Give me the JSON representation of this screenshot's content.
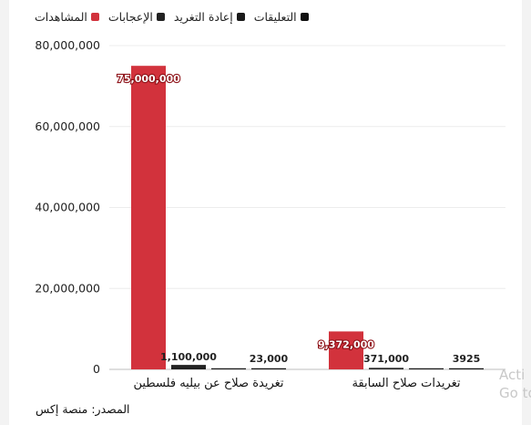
{
  "chart_data": {
    "type": "bar",
    "categories": [
      "تغريدة صلاح عن بيليه فلسطين",
      "تغريدات صلاح السابقة"
    ],
    "series": [
      {
        "name": "المشاهدات",
        "values": [
          75000000,
          9372000
        ],
        "color": "#d2323c",
        "labels": [
          "75,000,000",
          "9,372,000"
        ]
      },
      {
        "name": "الإعجابات",
        "values": [
          1100000,
          371000
        ],
        "color": "#222222",
        "labels": [
          "1,100,000",
          "371,000"
        ]
      },
      {
        "name": "إعادة التغريد",
        "values": [
          23000,
          3925
        ],
        "color": "#1a1a1a",
        "labels": [
          "",
          ""
        ]
      },
      {
        "name": "التعليقات",
        "values": [
          23000,
          3925
        ],
        "color": "#111111",
        "labels": [
          "23,000",
          "3925"
        ]
      }
    ],
    "y_ticks": [
      "0",
      "20,000,000",
      "40,000,000",
      "60,000,000",
      "80,000,000"
    ],
    "ylim": [
      0,
      80000000
    ],
    "grid": true,
    "legend_position": "top",
    "source": "المصدر: منصة إكس"
  },
  "watermark": {
    "line1": "Acti",
    "line2": "Go to"
  }
}
